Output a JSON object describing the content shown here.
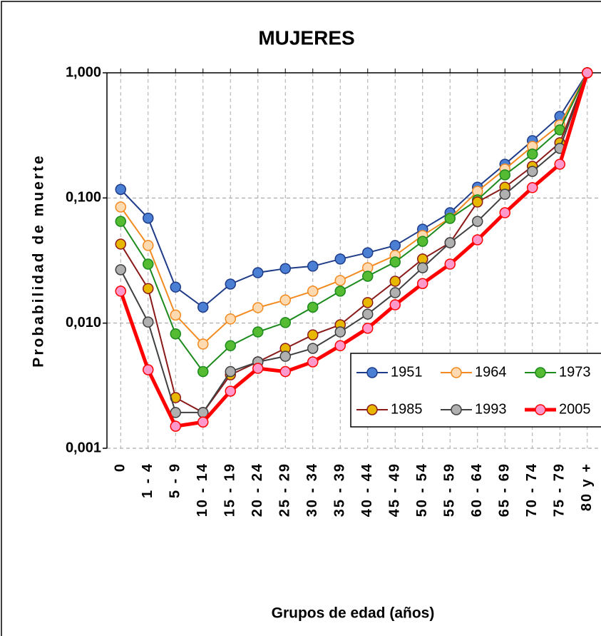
{
  "chart_data": {
    "type": "line",
    "title": "MUJERES",
    "x_label": "Grupos de edad (años)",
    "y_label": "Probabilidad de muerte",
    "categories": [
      "0",
      "1 - 4",
      "5 - 9",
      "10 - 14",
      "15 - 19",
      "20 - 24",
      "25 - 29",
      "30 - 34",
      "35 - 39",
      "40 - 44",
      "45 - 49",
      "50 - 54",
      "55 - 59",
      "60 - 64",
      "65 - 69",
      "70 - 74",
      "75 - 79",
      "80 y +"
    ],
    "log_scale": true,
    "grid": true,
    "legend": "lower right",
    "ylim": [
      0.001,
      1
    ],
    "yticks": [
      {
        "value": 1,
        "label": "1,000"
      },
      {
        "value": 0.1,
        "label": "0,100"
      },
      {
        "value": 0.01,
        "label": "0,010"
      },
      {
        "value": 0.001,
        "label": "0,001"
      }
    ],
    "series": [
      {
        "name": "1951",
        "color": "#1f3c88",
        "marker_color": "#4a7fd4",
        "values": [
          0.117,
          0.069,
          0.0194,
          0.0134,
          0.0205,
          0.0253,
          0.0273,
          0.0285,
          0.0325,
          0.0365,
          0.0417,
          0.0563,
          0.0762,
          0.122,
          0.186,
          0.287,
          0.449,
          1
        ]
      },
      {
        "name": "1964",
        "color": "#f28a1f",
        "marker_color": "#ffd9b0",
        "values": [
          0.0847,
          0.0417,
          0.0116,
          0.0068,
          0.0108,
          0.0133,
          0.0153,
          0.018,
          0.0219,
          0.0277,
          0.0347,
          0.0501,
          0.069,
          0.113,
          0.17,
          0.258,
          0.383,
          1
        ]
      },
      {
        "name": "1973",
        "color": "#1c8a1c",
        "marker_color": "#55bb33",
        "values": [
          0.065,
          0.0296,
          0.0082,
          0.0041,
          0.0066,
          0.0085,
          0.0101,
          0.0134,
          0.018,
          0.0237,
          0.0308,
          0.045,
          0.0686,
          0.0966,
          0.153,
          0.224,
          0.35,
          1
        ]
      },
      {
        "name": "1985",
        "color": "#8b1a1a",
        "marker_color": "#e8b800",
        "values": [
          0.0428,
          0.0189,
          0.00254,
          0.00193,
          0.00386,
          0.0049,
          0.00628,
          0.00805,
          0.0097,
          0.0146,
          0.0216,
          0.0325,
          0.0439,
          0.0928,
          0.122,
          0.179,
          0.276,
          1
        ]
      },
      {
        "name": "1993",
        "color": "#404040",
        "marker_color": "#b0b0b0",
        "values": [
          0.0267,
          0.0102,
          0.00193,
          0.00193,
          0.0041,
          0.0049,
          0.00543,
          0.00628,
          0.0085,
          0.0118,
          0.0175,
          0.0277,
          0.0439,
          0.065,
          0.107,
          0.163,
          0.249,
          1
        ]
      },
      {
        "name": "2005",
        "color": "#ff0000",
        "marker_color": "#ff99cc",
        "values": [
          0.018,
          0.00424,
          0.0015,
          0.00162,
          0.00286,
          0.00435,
          0.0041,
          0.0049,
          0.0066,
          0.0091,
          0.014,
          0.0207,
          0.0296,
          0.0463,
          0.0762,
          0.121,
          0.186,
          1
        ]
      }
    ]
  }
}
